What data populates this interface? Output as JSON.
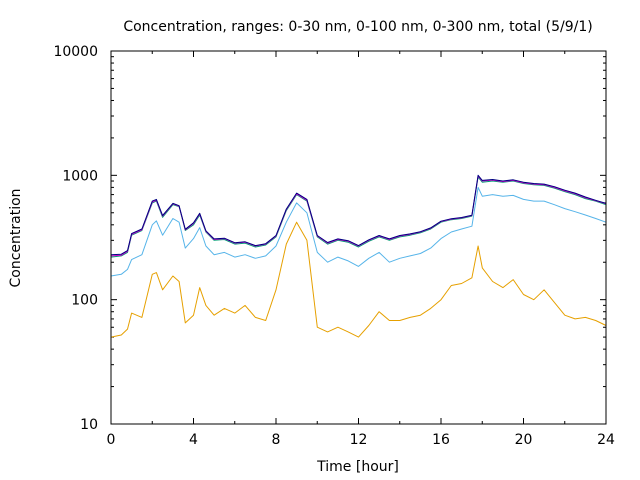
{
  "chart_data": {
    "type": "line",
    "title": "Concentration, ranges: 0-30 nm, 0-100 nm, 0-300 nm, total (5/9/1)",
    "xlabel": "Time [hour]",
    "ylabel": "Concentration",
    "xlim": [
      0,
      24
    ],
    "ylim": [
      10,
      10000
    ],
    "yscale": "log",
    "grid": false,
    "legend": "none",
    "xticks": [
      0,
      4,
      8,
      12,
      16,
      20,
      24
    ],
    "xtick_labels": [
      "0",
      "4",
      "8",
      "12",
      "16",
      "20",
      "24"
    ],
    "yticks": [
      10,
      100,
      1000,
      10000
    ],
    "ytick_labels": [
      "10",
      "100",
      "1000",
      "10000"
    ],
    "x": [
      0,
      0.5,
      0.8,
      1,
      1.5,
      2,
      2.2,
      2.5,
      3,
      3.3,
      3.6,
      4,
      4.3,
      4.6,
      5,
      5.5,
      6,
      6.5,
      7,
      7.5,
      8,
      8.5,
      9,
      9.5,
      10,
      10.5,
      11,
      11.5,
      12,
      12.5,
      13,
      13.5,
      14,
      14.5,
      15,
      15.5,
      16,
      16.5,
      17,
      17.5,
      17.8,
      18,
      18.5,
      19,
      19.5,
      20,
      20.5,
      21,
      21.5,
      22,
      22.5,
      23,
      23.5,
      24
    ],
    "series": [
      {
        "color": "#e6a000",
        "values": [
          50,
          52,
          58,
          78,
          72,
          160,
          165,
          120,
          155,
          140,
          65,
          75,
          125,
          90,
          75,
          85,
          78,
          90,
          72,
          68,
          120,
          280,
          420,
          300,
          60,
          55,
          60,
          55,
          50,
          62,
          80,
          68,
          68,
          72,
          75,
          85,
          100,
          130,
          135,
          150,
          270,
          180,
          140,
          125,
          145,
          110,
          100,
          120,
          95,
          75,
          70,
          72,
          68,
          62
        ]
      },
      {
        "color": "#56b4e9",
        "values": [
          155,
          160,
          175,
          210,
          230,
          400,
          430,
          330,
          450,
          420,
          260,
          310,
          380,
          270,
          230,
          240,
          220,
          230,
          215,
          225,
          270,
          420,
          600,
          500,
          240,
          200,
          220,
          205,
          185,
          215,
          240,
          200,
          215,
          225,
          235,
          260,
          310,
          350,
          370,
          390,
          800,
          680,
          700,
          680,
          690,
          640,
          620,
          620,
          580,
          540,
          510,
          480,
          450,
          420
        ]
      },
      {
        "color": "#009e73",
        "values": [
          220,
          225,
          240,
          330,
          360,
          600,
          620,
          460,
          580,
          560,
          360,
          400,
          480,
          350,
          300,
          305,
          280,
          285,
          265,
          275,
          320,
          520,
          700,
          620,
          320,
          280,
          300,
          290,
          265,
          295,
          320,
          300,
          320,
          330,
          345,
          370,
          420,
          440,
          450,
          470,
          970,
          880,
          900,
          880,
          900,
          860,
          840,
          830,
          790,
          740,
          700,
          650,
          620,
          580
        ]
      },
      {
        "color": "#cc00cc",
        "values": [
          225,
          228,
          245,
          335,
          365,
          610,
          630,
          470,
          590,
          565,
          365,
          410,
          490,
          355,
          305,
          310,
          285,
          290,
          270,
          280,
          325,
          530,
          710,
          630,
          325,
          285,
          305,
          295,
          270,
          300,
          325,
          305,
          325,
          335,
          350,
          375,
          425,
          445,
          455,
          475,
          990,
          900,
          915,
          890,
          910,
          870,
          850,
          840,
          800,
          750,
          710,
          660,
          625,
          590
        ]
      },
      {
        "color": "#000080",
        "values": [
          230,
          232,
          248,
          340,
          370,
          620,
          640,
          475,
          595,
          570,
          368,
          415,
          495,
          358,
          308,
          312,
          287,
          292,
          272,
          282,
          328,
          535,
          720,
          640,
          328,
          288,
          308,
          298,
          272,
          303,
          328,
          308,
          328,
          338,
          352,
          378,
          428,
          448,
          458,
          478,
          1000,
          910,
          925,
          900,
          920,
          880,
          860,
          850,
          810,
          760,
          720,
          670,
          630,
          595
        ]
      }
    ]
  }
}
